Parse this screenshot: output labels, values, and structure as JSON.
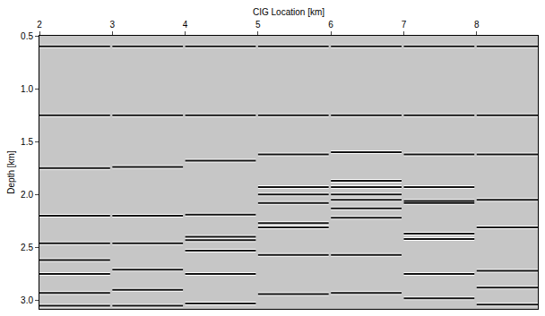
{
  "chart_data": {
    "type": "gathers",
    "x_label": "CIG Location [km]",
    "y_label": "Depth [km]",
    "x": [
      2,
      3,
      4,
      5,
      6,
      7,
      8
    ],
    "panel_width": 0.97,
    "reflectors": [
      [
        0.6,
        1.25,
        1.75,
        2.2,
        2.46,
        2.62,
        2.75,
        2.93,
        3.05
      ],
      [
        0.6,
        1.25,
        1.74,
        2.2,
        2.46,
        2.71,
        2.9,
        3.05
      ],
      [
        0.6,
        1.25,
        1.68,
        2.19,
        2.4,
        2.43,
        2.53,
        2.75,
        3.03
      ],
      [
        0.6,
        1.25,
        1.62,
        1.93,
        2.0,
        2.08,
        2.27,
        2.31,
        2.57,
        2.94
      ],
      [
        0.6,
        1.25,
        1.6,
        1.87,
        1.93,
        2.0,
        2.05,
        2.13,
        2.22,
        2.57,
        2.93
      ],
      [
        0.6,
        1.25,
        1.62,
        1.93,
        2.06,
        2.08,
        2.37,
        2.42,
        2.75,
        2.98
      ],
      [
        0.6,
        1.25,
        1.62,
        2.05,
        2.31,
        2.72,
        2.88,
        3.04
      ]
    ],
    "color": "#111111",
    "xlim": [
      2,
      8.84
    ],
    "ylim": [
      3.08,
      0.5
    ],
    "xticks": [
      2,
      3,
      4,
      5,
      6,
      7,
      8
    ],
    "yticks": [
      0.5,
      {
        "value": 1,
        "label": "1.0"
      },
      1.5,
      {
        "value": 2,
        "label": "2.0"
      },
      2.5,
      {
        "value": 3,
        "label": "3.0"
      }
    ],
    "grid": false
  }
}
